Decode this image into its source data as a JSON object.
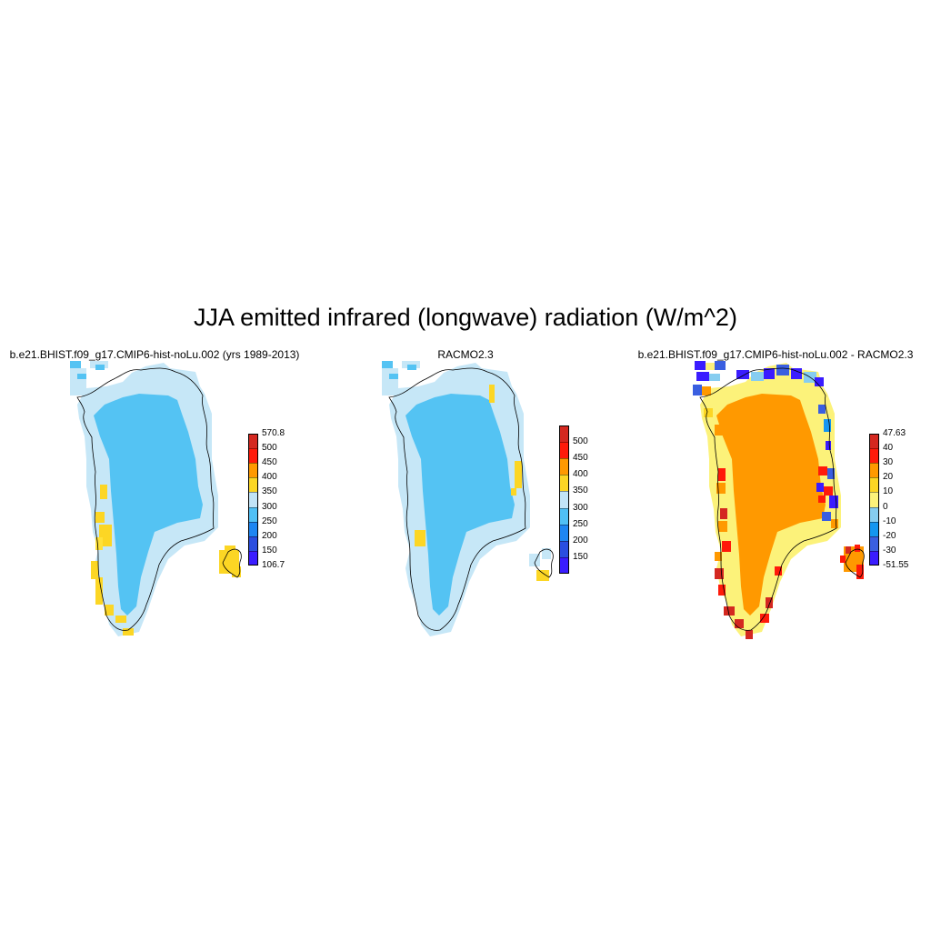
{
  "title": "JJA emitted infrared (longwave) radiation (W/m^2)",
  "panels": [
    {
      "title": "b.e21.BHIST.f09_g17.CMIP6-hist-noLu.002 (yrs 1989-2013)",
      "colorbar": {
        "colors": [
          "#3a1cff",
          "#2a4ee0",
          "#1e86f2",
          "#50c0f5",
          "#c2e4f7",
          "#fcd624",
          "#ff9900",
          "#ff1a0a",
          "#d42820"
        ],
        "labels": [
          "106.7",
          "150",
          "200",
          "250",
          "300",
          "350",
          "400",
          "450",
          "500",
          "570.8"
        ]
      }
    },
    {
      "title": "RACMO2.3",
      "colorbar": {
        "colors": [
          "#3a1cff",
          "#2a4ee0",
          "#1e86f2",
          "#50c0f5",
          "#c2e4f7",
          "#fcd624",
          "#ff9900",
          "#ff1a0a",
          "#d42820"
        ],
        "labels": [
          "",
          "150",
          "200",
          "250",
          "300",
          "350",
          "400",
          "450",
          "500",
          ""
        ]
      }
    },
    {
      "title": "b.e21.BHIST.f09_g17.CMIP6-hist-noLu.002 - RACMO2.3",
      "colorbar": {
        "colors": [
          "#3a1cff",
          "#3a5fe0",
          "#1496f0",
          "#86cdf0",
          "#fcf27a",
          "#fcd624",
          "#ff9900",
          "#ff1a0a",
          "#d42820"
        ],
        "labels": [
          "-51.55",
          "-30",
          "-20",
          "-10",
          "0",
          "10",
          "20",
          "30",
          "40",
          "47.63"
        ]
      }
    }
  ]
}
